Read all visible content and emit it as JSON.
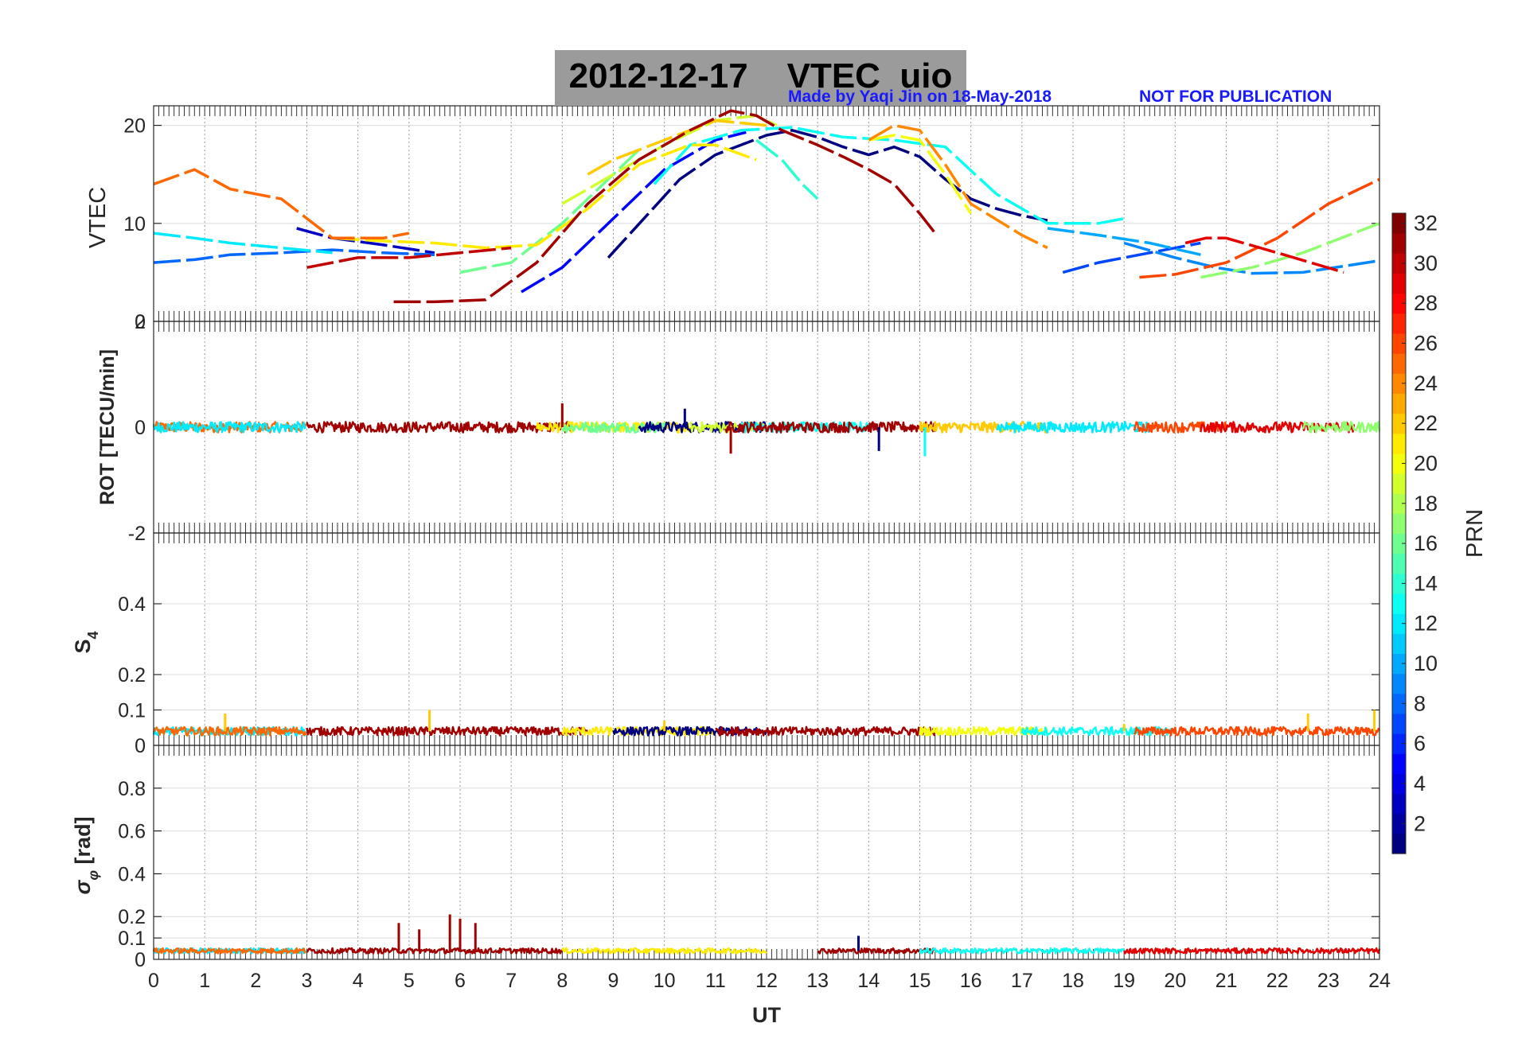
{
  "figure": {
    "title": "2012-12-17    VTEC  uio",
    "credit": "Made by Yaqi Jin on 18-May-2018",
    "notice": "NOT FOR PUBLICATION",
    "credit_color": "#1a1aff",
    "title_bg": "#9b9b9b"
  },
  "chart_data": [
    {
      "type": "line",
      "panel": "vtec",
      "title": "2012-12-17 VTEC uio",
      "xlabel": "",
      "ylabel": "VTEC",
      "xlim": [
        0,
        24
      ],
      "ylim": [
        0,
        22
      ],
      "yticks": [
        0,
        10,
        20
      ],
      "ytick_labels": [
        "0",
        "10",
        "20"
      ],
      "grid": true,
      "series": [
        {
          "name": "PRN 1",
          "prn": 1,
          "x": [
            8.9,
            9.6,
            10.3,
            11.0,
            11.5,
            12.0,
            12.5,
            13.0,
            13.5,
            14.0,
            14.5,
            15.0,
            15.5,
            16.0,
            16.5,
            17.0,
            17.5
          ],
          "y": [
            6.5,
            10.5,
            14.5,
            17.0,
            18.0,
            19.0,
            19.5,
            18.8,
            17.8,
            17.0,
            17.8,
            16.8,
            14.5,
            12.5,
            11.5,
            10.8,
            10.3
          ]
        },
        {
          "name": "PRN 3",
          "prn": 3,
          "x": [
            2.8,
            3.5,
            4.5,
            5.5
          ],
          "y": [
            9.5,
            8.5,
            7.8,
            7.0
          ]
        },
        {
          "name": "PRN 5",
          "prn": 5,
          "x": [
            7.2,
            8.0,
            9.0,
            10.0,
            11.0,
            11.6
          ],
          "y": [
            3.0,
            5.5,
            10.5,
            15.5,
            18.5,
            19.3
          ]
        },
        {
          "name": "PRN 7",
          "prn": 7,
          "x": [
            17.8,
            18.5,
            19.5,
            20.5
          ],
          "y": [
            5.0,
            6.0,
            7.0,
            8.0
          ]
        },
        {
          "name": "PRN 8",
          "prn": 8,
          "x": [
            0.0,
            0.8,
            1.5,
            2.5,
            3.5,
            4.5,
            5.5
          ],
          "y": [
            6.0,
            6.3,
            6.8,
            7.0,
            7.3,
            7.0,
            6.8
          ]
        },
        {
          "name": "PRN 9",
          "prn": 9,
          "x": [
            19.0,
            20.0,
            20.8,
            21.5,
            22.5,
            23.5,
            24.0
          ],
          "y": [
            8.0,
            6.5,
            5.5,
            4.9,
            5.0,
            5.8,
            6.2
          ]
        },
        {
          "name": "PRN 10",
          "prn": 10,
          "x": [
            17.5,
            18.5,
            19.5,
            20.5
          ],
          "y": [
            9.5,
            8.8,
            8.0,
            6.8
          ]
        },
        {
          "name": "PRN 12",
          "prn": 12,
          "x": [
            0.0,
            0.8,
            1.5,
            2.5,
            3.5
          ],
          "y": [
            9.0,
            8.5,
            8.0,
            7.5,
            7.0
          ]
        },
        {
          "name": "PRN 13",
          "prn": 13,
          "x": [
            9.8,
            10.5,
            11.5,
            12.5,
            13.5,
            14.5,
            15.5,
            16.5,
            17.5,
            18.5,
            19.0
          ],
          "y": [
            14.0,
            18.0,
            19.5,
            19.8,
            18.8,
            18.5,
            17.8,
            13.0,
            10.0,
            10.0,
            10.5
          ]
        },
        {
          "name": "PRN 14",
          "prn": 14,
          "x": [
            11.8,
            12.3,
            12.7,
            13.0
          ],
          "y": [
            18.5,
            16.5,
            14.0,
            12.5
          ]
        },
        {
          "name": "PRN 16",
          "prn": 16,
          "x": [
            6.0,
            7.0,
            8.0,
            9.0,
            9.5
          ],
          "y": [
            5.0,
            6.0,
            10.0,
            15.0,
            17.5
          ]
        },
        {
          "name": "PRN 17",
          "prn": 17,
          "x": [
            20.5,
            21.5,
            22.5,
            23.5,
            24.0
          ],
          "y": [
            4.5,
            5.5,
            7.0,
            9.0,
            10.0
          ]
        },
        {
          "name": "PRN 19",
          "prn": 19,
          "x": [
            8.0,
            9.0,
            10.0,
            11.0,
            11.8,
            12.2
          ],
          "y": [
            12.0,
            15.0,
            18.0,
            20.5,
            21.0,
            20.0
          ]
        },
        {
          "name": "PRN 21",
          "prn": 21,
          "x": [
            3.5,
            4.5,
            5.5,
            6.5,
            7.5,
            8.5,
            9.5,
            10.5,
            11.0,
            11.8
          ],
          "y": [
            8.5,
            8.2,
            8.0,
            7.5,
            7.8,
            11.5,
            16.0,
            18.0,
            18.0,
            16.5
          ]
        },
        {
          "name": "PRN 20",
          "prn": 20,
          "x": [
            14.0,
            14.5,
            15.0,
            15.5,
            16.0
          ],
          "y": [
            18.5,
            19.0,
            18.5,
            15.0,
            11.0
          ]
        },
        {
          "name": "PRN 22",
          "prn": 22,
          "x": [
            8.5,
            9.0,
            10.0,
            11.0,
            12.0
          ],
          "y": [
            15.0,
            16.5,
            18.5,
            20.5,
            20.0
          ]
        },
        {
          "name": "PRN 24",
          "prn": 24,
          "x": [
            14.0,
            14.5,
            15.0,
            15.5,
            16.0,
            17.0,
            17.5
          ],
          "y": [
            18.5,
            20.0,
            19.5,
            16.0,
            12.0,
            8.8,
            7.5
          ]
        },
        {
          "name": "PRN 25",
          "prn": 25,
          "x": [
            0.0,
            0.8,
            1.5,
            2.5,
            3.5,
            4.5,
            5.0
          ],
          "y": [
            14.0,
            15.5,
            13.5,
            12.5,
            8.5,
            8.5,
            9.0
          ]
        },
        {
          "name": "PRN 26",
          "prn": 26,
          "x": [
            19.3,
            20.0,
            21.0,
            22.0,
            23.0,
            24.0
          ],
          "y": [
            4.5,
            4.8,
            6.0,
            8.5,
            12.0,
            14.5
          ]
        },
        {
          "name": "PRN 29",
          "prn": 29,
          "x": [
            20.2,
            20.6,
            21.0,
            22.0,
            23.3
          ],
          "y": [
            8.0,
            8.5,
            8.5,
            7.0,
            5.0
          ]
        },
        {
          "name": "PRN 31",
          "prn": 31,
          "x": [
            4.7,
            5.5,
            6.5,
            7.5,
            8.5,
            9.5,
            10.5,
            11.3,
            11.8,
            12.3,
            13.0,
            13.5,
            14.0,
            14.5,
            15.0,
            15.3
          ],
          "y": [
            2.0,
            2.0,
            2.2,
            6.0,
            12.0,
            16.5,
            19.5,
            21.5,
            21.0,
            19.5,
            18.0,
            16.8,
            15.5,
            14.0,
            11.0,
            9.0
          ]
        },
        {
          "name": "PRN 30",
          "prn": 30,
          "x": [
            3.0,
            4.0,
            5.0,
            6.0,
            7.0
          ],
          "y": [
            5.5,
            6.5,
            6.5,
            7.0,
            7.5
          ]
        }
      ]
    },
    {
      "type": "line",
      "panel": "rot",
      "ylabel": "ROT [TECU/min]",
      "xlim": [
        0,
        24
      ],
      "ylim": [
        -2,
        2
      ],
      "yticks": [
        -2,
        0,
        2
      ],
      "ytick_labels": [
        "-2",
        "0",
        "2"
      ],
      "grid": true,
      "baseline": 0,
      "typical_amplitude": 0.1,
      "notable_excursions": [
        {
          "x": 8.0,
          "y": 0.45,
          "prn": 31
        },
        {
          "x": 11.3,
          "y": -0.5,
          "prn": 31
        },
        {
          "x": 15.1,
          "y": -0.55,
          "prn": 13
        },
        {
          "x": 14.2,
          "y": -0.45,
          "prn": 1
        },
        {
          "x": 10.4,
          "y": 0.35,
          "prn": 1
        }
      ],
      "series": [
        {
          "name": "PRN 25",
          "prn": 25,
          "x_range": [
            0,
            3
          ]
        },
        {
          "name": "PRN 12",
          "prn": 12,
          "x_range": [
            0,
            3
          ]
        },
        {
          "name": "PRN 31",
          "prn": 31,
          "x_range": [
            3,
            8.2
          ]
        },
        {
          "name": "PRN 21",
          "prn": 21,
          "x_range": [
            7.5,
            10.5
          ]
        },
        {
          "name": "PRN 16",
          "prn": 16,
          "x_range": [
            8,
            10
          ]
        },
        {
          "name": "PRN 1",
          "prn": 1,
          "x_range": [
            9.5,
            12
          ]
        },
        {
          "name": "PRN 19",
          "prn": 19,
          "x_range": [
            10.5,
            12
          ]
        },
        {
          "name": "PRN 13",
          "prn": 13,
          "x_range": [
            11.5,
            14
          ]
        },
        {
          "name": "PRN 31",
          "prn": 31,
          "x_range": [
            11.2,
            15.3
          ]
        },
        {
          "name": "PRN 22",
          "prn": 22,
          "x_range": [
            15,
            17.5
          ]
        },
        {
          "name": "PRN 12",
          "prn": 12,
          "x_range": [
            16.5,
            19.5
          ]
        },
        {
          "name": "PRN 26",
          "prn": 26,
          "x_range": [
            19.2,
            21
          ]
        },
        {
          "name": "PRN 29",
          "prn": 29,
          "x_range": [
            20.5,
            23.5
          ]
        },
        {
          "name": "PRN 17",
          "prn": 17,
          "x_range": [
            22.5,
            24
          ]
        }
      ]
    },
    {
      "type": "line",
      "panel": "s4",
      "ylabel": "S4",
      "ylabel_main": "S",
      "ylabel_sub": "4",
      "xlim": [
        0,
        24
      ],
      "ylim": [
        0,
        0.6
      ],
      "yticks": [
        0,
        0.1,
        0.2,
        0.4
      ],
      "ytick_labels": [
        "0",
        "0.1",
        "0.2",
        "0.4"
      ],
      "grid": true,
      "baseline": 0.04,
      "peaks": [
        {
          "x": 1.4,
          "y": 0.09
        },
        {
          "x": 5.4,
          "y": 0.1
        },
        {
          "x": 10.0,
          "y": 0.07
        },
        {
          "x": 19.0,
          "y": 0.06
        },
        {
          "x": 22.6,
          "y": 0.09
        },
        {
          "x": 23.9,
          "y": 0.1
        }
      ],
      "series": [
        {
          "name": "PRN 12",
          "prn": 12,
          "x_range": [
            0,
            3
          ]
        },
        {
          "name": "PRN 25",
          "prn": 25,
          "x_range": [
            0,
            3
          ]
        },
        {
          "name": "PRN 31",
          "prn": 31,
          "x_range": [
            3,
            8.5
          ]
        },
        {
          "name": "PRN 21",
          "prn": 21,
          "x_range": [
            8,
            11
          ]
        },
        {
          "name": "PRN 1",
          "prn": 1,
          "x_range": [
            9,
            12
          ]
        },
        {
          "name": "PRN 31",
          "prn": 31,
          "x_range": [
            11,
            15.3
          ]
        },
        {
          "name": "PRN 20",
          "prn": 20,
          "x_range": [
            15,
            17.5
          ]
        },
        {
          "name": "PRN 13",
          "prn": 13,
          "x_range": [
            17,
            20
          ]
        },
        {
          "name": "PRN 26",
          "prn": 26,
          "x_range": [
            19.2,
            24
          ]
        }
      ]
    },
    {
      "type": "line",
      "panel": "sigma_phi",
      "ylabel": "σ_φ [rad]",
      "ylabel_main": "σ",
      "ylabel_sub": "φ",
      "ylabel_unit": " [rad]",
      "xlabel": "UT",
      "xlim": [
        0,
        24
      ],
      "ylim": [
        0,
        1
      ],
      "xticks": [
        0,
        1,
        2,
        3,
        4,
        5,
        6,
        7,
        8,
        9,
        10,
        11,
        12,
        13,
        14,
        15,
        16,
        17,
        18,
        19,
        20,
        21,
        22,
        23,
        24
      ],
      "yticks": [
        0,
        0.1,
        0.2,
        0.4,
        0.6,
        0.8
      ],
      "ytick_labels": [
        "0",
        "0.1",
        "0.2",
        "0.4",
        "0.6",
        "0.8"
      ],
      "grid": true,
      "baseline": 0.04,
      "bursts": [
        {
          "x": 4.8,
          "y": 0.17,
          "prn": 31
        },
        {
          "x": 5.2,
          "y": 0.14,
          "prn": 31
        },
        {
          "x": 5.8,
          "y": 0.21,
          "prn": 31
        },
        {
          "x": 6.0,
          "y": 0.19,
          "prn": 31
        },
        {
          "x": 6.3,
          "y": 0.17,
          "prn": 31
        },
        {
          "x": 13.8,
          "y": 0.11,
          "prn": 1
        }
      ],
      "series": [
        {
          "name": "PRN 12",
          "prn": 12,
          "x_range": [
            0,
            3
          ]
        },
        {
          "name": "PRN 25",
          "prn": 25,
          "x_range": [
            0,
            3
          ]
        },
        {
          "name": "PRN 31",
          "prn": 31,
          "x_range": [
            3,
            8
          ]
        },
        {
          "name": "PRN 21",
          "prn": 21,
          "x_range": [
            8,
            12
          ]
        },
        {
          "name": "PRN 31",
          "prn": 31,
          "x_range": [
            13,
            15.3
          ]
        },
        {
          "name": "PRN 13",
          "prn": 13,
          "x_range": [
            15,
            19
          ]
        },
        {
          "name": "PRN 29",
          "prn": 29,
          "x_range": [
            19,
            24
          ]
        }
      ]
    }
  ],
  "colorbar": {
    "label": "PRN",
    "min": 1,
    "max": 32,
    "ticks": [
      2,
      4,
      6,
      8,
      10,
      12,
      14,
      16,
      18,
      20,
      22,
      24,
      26,
      28,
      30,
      32
    ],
    "colormap": "jet"
  }
}
